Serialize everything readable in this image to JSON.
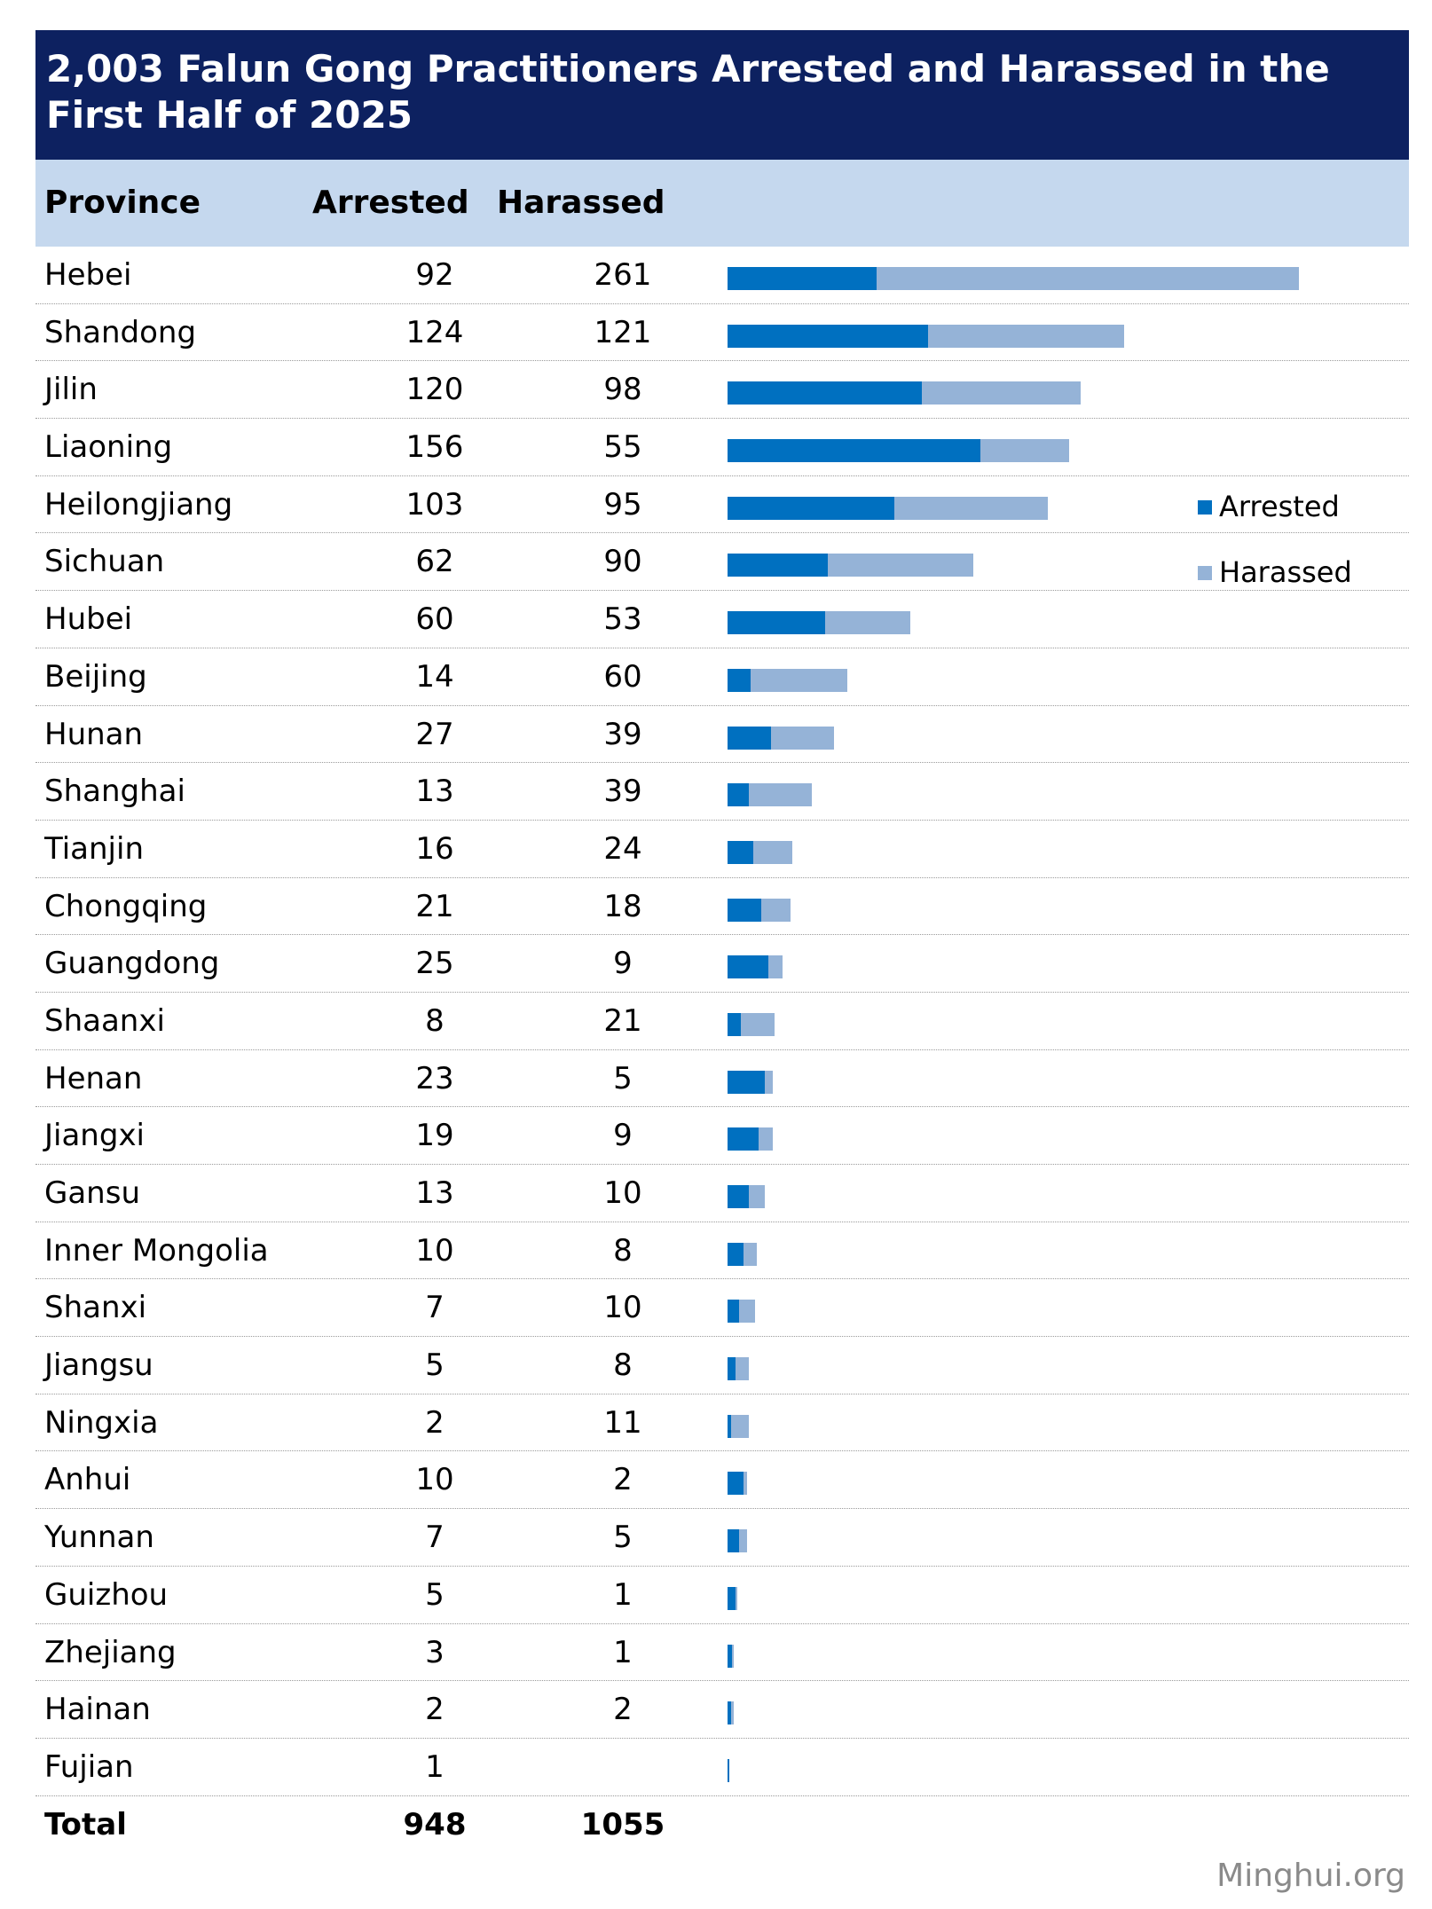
{
  "chart_data": {
    "type": "bar",
    "title": "2,003 Falun Gong Practitioners Arrested and Harassed in the First Half of 2025",
    "columns": [
      "Province",
      "Arrested",
      "Harassed"
    ],
    "categories": [
      "Hebei",
      "Shandong",
      "Jilin",
      "Liaoning",
      "Heilongjiang",
      "Sichuan",
      "Hubei",
      "Beijing",
      "Hunan",
      "Shanghai",
      "Tianjin",
      "Chongqing",
      "Guangdong",
      "Shaanxi",
      "Henan",
      "Jiangxi",
      "Gansu",
      "Inner Mongolia",
      "Shanxi",
      "Jiangsu",
      "Ningxia",
      "Anhui",
      "Yunnan",
      "Guizhou",
      "Zhejiang",
      "Hainan",
      "Fujian"
    ],
    "series": [
      {
        "name": "Arrested",
        "color": "#0070c0",
        "values": [
          92,
          124,
          120,
          156,
          103,
          62,
          60,
          14,
          27,
          13,
          16,
          21,
          25,
          8,
          23,
          19,
          13,
          10,
          7,
          5,
          2,
          10,
          7,
          5,
          3,
          2,
          1
        ]
      },
      {
        "name": "Harassed",
        "color": "#95b3d7",
        "values": [
          261,
          121,
          98,
          55,
          95,
          90,
          53,
          60,
          39,
          39,
          24,
          18,
          9,
          21,
          5,
          9,
          10,
          8,
          10,
          8,
          11,
          2,
          5,
          1,
          1,
          2,
          null
        ]
      }
    ],
    "stacked": true,
    "orientation": "horizontal",
    "legend_position": "right",
    "total_label": "Total",
    "totals": {
      "Arrested": "948",
      "Harassed": "1055"
    }
  },
  "credit": "Minghui.org"
}
